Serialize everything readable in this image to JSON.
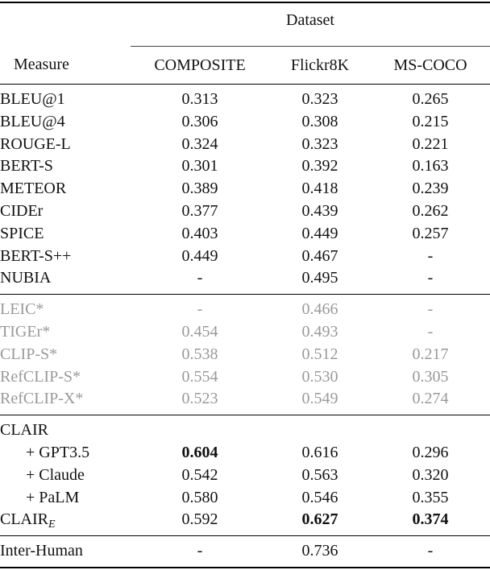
{
  "colors": {
    "text": "#111111",
    "muted": "#999999",
    "rule": "#000000"
  },
  "table": {
    "group_header": "Dataset",
    "columns": [
      "Measure",
      "COMPOSITE",
      "Flickr8K",
      "MS-COCO"
    ],
    "sections": [
      {
        "name": "standard-measures",
        "muted": false,
        "rows": [
          {
            "label": "BLEU@1",
            "values": [
              "0.313",
              "0.323",
              "0.265"
            ]
          },
          {
            "label": "BLEU@4",
            "values": [
              "0.306",
              "0.308",
              "0.215"
            ]
          },
          {
            "label": "ROUGE-L",
            "values": [
              "0.324",
              "0.323",
              "0.221"
            ]
          },
          {
            "label": "BERT-S",
            "values": [
              "0.301",
              "0.392",
              "0.163"
            ]
          },
          {
            "label": "METEOR",
            "values": [
              "0.389",
              "0.418",
              "0.239"
            ]
          },
          {
            "label": "CIDEr",
            "values": [
              "0.377",
              "0.439",
              "0.262"
            ]
          },
          {
            "label": "SPICE",
            "values": [
              "0.403",
              "0.449",
              "0.257"
            ]
          },
          {
            "label": "BERT-S++",
            "values": [
              "0.449",
              "0.467",
              "-"
            ]
          },
          {
            "label": "NUBIA",
            "values": [
              "-",
              "0.495",
              "-"
            ]
          }
        ]
      },
      {
        "name": "muted-measures",
        "muted": true,
        "rows": [
          {
            "label": "LEIC*",
            "values": [
              "-",
              "0.466",
              "-"
            ]
          },
          {
            "label": "TIGEr*",
            "values": [
              "0.454",
              "0.493",
              "-"
            ]
          },
          {
            "label": "CLIP-S*",
            "values": [
              "0.538",
              "0.512",
              "0.217"
            ]
          },
          {
            "label": "RefCLIP-S*",
            "values": [
              "0.554",
              "0.530",
              "0.305"
            ]
          },
          {
            "label": "RefCLIP-X*",
            "values": [
              "0.523",
              "0.549",
              "0.274"
            ]
          }
        ]
      },
      {
        "name": "clair-measures",
        "muted": false,
        "rows": [
          {
            "label": "CLAIR",
            "values": [
              "",
              "",
              ""
            ]
          },
          {
            "label": "+ GPT3.5",
            "indent": true,
            "values": [
              {
                "v": "0.604",
                "bold": true
              },
              "0.616",
              "0.296"
            ]
          },
          {
            "label": "+ Claude",
            "indent": true,
            "values": [
              "0.542",
              "0.563",
              "0.320"
            ]
          },
          {
            "label": "+ PaLM",
            "indent": true,
            "values": [
              "0.580",
              "0.546",
              "0.355"
            ]
          },
          {
            "label": "CLAIR",
            "sub": "E",
            "values": [
              "0.592",
              {
                "v": "0.627",
                "bold": true
              },
              {
                "v": "0.374",
                "bold": true
              }
            ]
          }
        ]
      },
      {
        "name": "inter-human",
        "muted": false,
        "rows": [
          {
            "label": "Inter-Human",
            "values": [
              "-",
              "0.736",
              "-"
            ]
          }
        ]
      }
    ]
  }
}
